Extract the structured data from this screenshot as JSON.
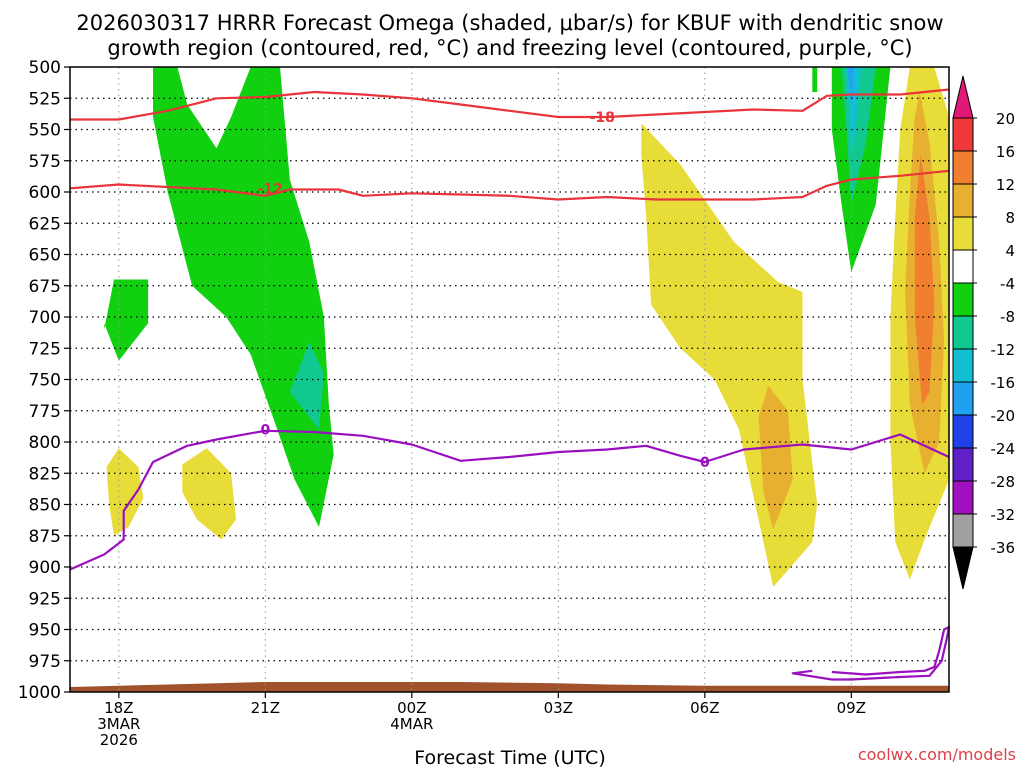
{
  "chart_data": {
    "type": "heatmap",
    "title_line1": "2026030317 HRRR Forecast Omega (shaded, μbar/s) for KBUF with dendritic snow",
    "title_line2": "growth region (contoured, red, °C) and freezing level (contoured, purple, °C)",
    "xlabel": "Forecast Time (UTC)",
    "ylabel": "",
    "credit": "coolwx.com/models",
    "x_range_hours": [
      -1.0,
      17.0
    ],
    "y_range_hpa": [
      1000,
      500
    ],
    "y_ticks": [
      500,
      525,
      550,
      575,
      600,
      625,
      650,
      675,
      700,
      725,
      750,
      775,
      800,
      825,
      850,
      875,
      900,
      925,
      950,
      975,
      1000
    ],
    "x_ticks": [
      {
        "hour": 0,
        "lines": [
          "18Z",
          "3MAR",
          "2026"
        ]
      },
      {
        "hour": 3,
        "lines": [
          "21Z"
        ]
      },
      {
        "hour": 6,
        "lines": [
          "00Z",
          "4MAR"
        ]
      },
      {
        "hour": 9,
        "lines": [
          "03Z"
        ]
      },
      {
        "hour": 12,
        "lines": [
          "06Z"
        ]
      },
      {
        "hour": 15,
        "lines": [
          "09Z"
        ]
      }
    ],
    "colorbar": {
      "labels": [
        "20",
        "16",
        "12",
        "8",
        "4",
        "-4",
        "-8",
        "-12",
        "-16",
        "-20",
        "-24",
        "-28",
        "-32",
        "-36"
      ],
      "bins": [
        {
          "from": 16,
          "to": 20,
          "color": "#f03838"
        },
        {
          "from": 12,
          "to": 16,
          "color": "#f08030"
        },
        {
          "from": 8,
          "to": 12,
          "color": "#e8b030"
        },
        {
          "from": 4,
          "to": 8,
          "color": "#e8dc38"
        },
        {
          "from": -4,
          "to": 4,
          "color": "#ffffff"
        },
        {
          "from": -8,
          "to": -4,
          "color": "#10d010"
        },
        {
          "from": -12,
          "to": -8,
          "color": "#10c890"
        },
        {
          "from": -16,
          "to": -12,
          "color": "#10c0d0"
        },
        {
          "from": -20,
          "to": -16,
          "color": "#20a0f0"
        },
        {
          "from": -24,
          "to": -20,
          "color": "#2040e8"
        },
        {
          "from": -28,
          "to": -24,
          "color": "#6020c8"
        },
        {
          "from": -32,
          "to": -28,
          "color": "#a010c0"
        },
        {
          "from": -36,
          "to": -32,
          "color": "#a0a0a0"
        }
      ],
      "over_color": "#e01878",
      "under_color": "#000000"
    },
    "omega_regions": [
      {
        "value": -6,
        "color": "#10d010",
        "points": [
          [
            0.7,
            500
          ],
          [
            1.2,
            500
          ],
          [
            1.4,
            530
          ],
          [
            2.0,
            565
          ],
          [
            2.3,
            540
          ],
          [
            2.7,
            500
          ],
          [
            3.3,
            500
          ],
          [
            3.5,
            590
          ],
          [
            3.9,
            640
          ],
          [
            4.2,
            700
          ],
          [
            4.3,
            770
          ],
          [
            4.4,
            810
          ],
          [
            4.1,
            868
          ],
          [
            3.6,
            830
          ],
          [
            3.2,
            785
          ],
          [
            2.7,
            730
          ],
          [
            2.2,
            700
          ],
          [
            1.5,
            675
          ],
          [
            1.0,
            600
          ],
          [
            0.7,
            540
          ]
        ]
      },
      {
        "value": -6,
        "color": "#10d010",
        "points": [
          [
            -0.3,
            710
          ],
          [
            -0.1,
            670
          ],
          [
            0.6,
            670
          ],
          [
            0.6,
            705
          ],
          [
            0.0,
            735
          ],
          [
            -0.3,
            705
          ]
        ]
      },
      {
        "value": -10,
        "color": "#10c890",
        "points": [
          [
            3.5,
            760
          ],
          [
            3.9,
            720
          ],
          [
            4.2,
            745
          ],
          [
            4.1,
            790
          ],
          [
            3.7,
            770
          ]
        ]
      },
      {
        "value": 6,
        "color": "#e8dc38",
        "points": [
          [
            -0.25,
            820
          ],
          [
            0.0,
            805
          ],
          [
            0.4,
            820
          ],
          [
            0.5,
            845
          ],
          [
            0.2,
            868
          ],
          [
            -0.1,
            875
          ],
          [
            -0.2,
            850
          ]
        ]
      },
      {
        "value": 6,
        "color": "#e8dc38",
        "points": [
          [
            1.3,
            818
          ],
          [
            1.8,
            805
          ],
          [
            2.3,
            825
          ],
          [
            2.4,
            862
          ],
          [
            2.1,
            878
          ],
          [
            1.6,
            862
          ],
          [
            1.3,
            840
          ]
        ]
      },
      {
        "value": 6,
        "color": "#e8dc38",
        "points": [
          [
            10.7,
            545
          ],
          [
            11.5,
            578
          ],
          [
            12.1,
            612
          ],
          [
            12.6,
            640
          ],
          [
            13.5,
            672
          ],
          [
            14.0,
            680
          ],
          [
            14.0,
            750
          ],
          [
            14.3,
            850
          ],
          [
            14.2,
            880
          ],
          [
            13.4,
            916
          ],
          [
            13.1,
            862
          ],
          [
            12.7,
            790
          ],
          [
            12.2,
            750
          ],
          [
            11.5,
            725
          ],
          [
            10.9,
            690
          ],
          [
            10.8,
            620
          ],
          [
            10.7,
            570
          ]
        ]
      },
      {
        "value": 10,
        "color": "#e8b030",
        "points": [
          [
            13.3,
            755
          ],
          [
            13.7,
            775
          ],
          [
            13.8,
            830
          ],
          [
            13.4,
            870
          ],
          [
            13.2,
            840
          ],
          [
            13.1,
            780
          ]
        ]
      },
      {
        "value": 6,
        "color": "#e8dc38",
        "points": [
          [
            16.2,
            500
          ],
          [
            16.7,
            500
          ],
          [
            17.0,
            540
          ],
          [
            17.0,
            830
          ],
          [
            16.5,
            878
          ],
          [
            16.2,
            910
          ],
          [
            15.9,
            880
          ],
          [
            15.8,
            800
          ],
          [
            15.8,
            700
          ],
          [
            15.9,
            620
          ],
          [
            16.0,
            550
          ]
        ]
      },
      {
        "value": 10,
        "color": "#e8b030",
        "points": [
          [
            16.4,
            520
          ],
          [
            16.6,
            560
          ],
          [
            16.8,
            640
          ],
          [
            16.9,
            720
          ],
          [
            16.8,
            800
          ],
          [
            16.5,
            825
          ],
          [
            16.2,
            770
          ],
          [
            16.1,
            680
          ],
          [
            16.2,
            600
          ],
          [
            16.3,
            540
          ]
        ]
      },
      {
        "value": 14,
        "color": "#f08030",
        "points": [
          [
            16.42,
            570
          ],
          [
            16.6,
            620
          ],
          [
            16.7,
            690
          ],
          [
            16.6,
            760
          ],
          [
            16.45,
            770
          ],
          [
            16.3,
            700
          ],
          [
            16.3,
            620
          ]
        ]
      },
      {
        "value": -6,
        "color": "#10d010",
        "points": [
          [
            14.2,
            500
          ],
          [
            14.3,
            500
          ],
          [
            14.3,
            520
          ],
          [
            14.2,
            520
          ]
        ]
      },
      {
        "value": -6,
        "color": "#10d010",
        "points": [
          [
            15.2,
            500
          ],
          [
            15.8,
            500
          ],
          [
            15.5,
            610
          ],
          [
            15.0,
            664
          ],
          [
            14.8,
            610
          ],
          [
            14.6,
            550
          ],
          [
            14.6,
            500
          ]
        ]
      },
      {
        "value": -10,
        "color": "#10c890",
        "points": [
          [
            14.8,
            500
          ],
          [
            15.5,
            500
          ],
          [
            15.3,
            560
          ],
          [
            15.0,
            610
          ],
          [
            14.9,
            550
          ]
        ]
      },
      {
        "value": -14,
        "color": "#10c0d0",
        "points": [
          [
            14.9,
            500
          ],
          [
            15.2,
            500
          ],
          [
            15.1,
            545
          ],
          [
            15.0,
            570
          ],
          [
            14.95,
            530
          ]
        ]
      },
      {
        "value": -18,
        "color": "#20a0f0",
        "points": [
          [
            14.93,
            500
          ],
          [
            15.05,
            500
          ],
          [
            15.02,
            530
          ],
          [
            14.98,
            525
          ]
        ]
      }
    ],
    "dgz_contours": [
      {
        "label": "-18",
        "label_at": [
          9.9,
          540
        ],
        "points": [
          [
            -1.0,
            542
          ],
          [
            0.0,
            542
          ],
          [
            1.0,
            535
          ],
          [
            2.0,
            525
          ],
          [
            3.0,
            524
          ],
          [
            4.0,
            520
          ],
          [
            5.0,
            522
          ],
          [
            6.0,
            525
          ],
          [
            7.0,
            530
          ],
          [
            8.0,
            535
          ],
          [
            9.0,
            540
          ],
          [
            10.0,
            540
          ],
          [
            11.0,
            538
          ],
          [
            12.0,
            536
          ],
          [
            13.0,
            534
          ],
          [
            14.0,
            535
          ],
          [
            14.5,
            523
          ],
          [
            15.0,
            522
          ],
          [
            16.0,
            522
          ],
          [
            17.0,
            518
          ]
        ]
      },
      {
        "label": "-12",
        "label_at": [
          3.1,
          597
        ],
        "points": [
          [
            -1.0,
            597
          ],
          [
            0.0,
            594
          ],
          [
            1.0,
            596
          ],
          [
            2.0,
            598
          ],
          [
            3.0,
            603
          ],
          [
            3.5,
            598
          ],
          [
            4.5,
            598
          ],
          [
            5.0,
            603
          ],
          [
            6.0,
            601
          ],
          [
            7.0,
            602
          ],
          [
            8.0,
            603
          ],
          [
            9.0,
            606
          ],
          [
            10.0,
            604
          ],
          [
            11.0,
            606
          ],
          [
            12.0,
            606
          ],
          [
            13.0,
            606
          ],
          [
            14.0,
            604
          ],
          [
            14.5,
            595
          ],
          [
            15.0,
            590
          ],
          [
            16.0,
            587
          ],
          [
            17.0,
            583
          ]
        ]
      }
    ],
    "freezing_level": {
      "label": "0",
      "label_at": [
        3.0,
        790
      ],
      "label2_at": [
        12.0,
        816
      ],
      "points": [
        [
          -1.0,
          902
        ],
        [
          -0.3,
          890
        ],
        [
          0.1,
          878
        ],
        [
          0.1,
          855
        ],
        [
          0.4,
          838
        ],
        [
          0.7,
          816
        ],
        [
          1.4,
          803
        ],
        [
          2.0,
          798
        ],
        [
          2.7,
          793
        ],
        [
          3.0,
          791
        ],
        [
          4.0,
          792
        ],
        [
          5.0,
          795
        ],
        [
          6.0,
          802
        ],
        [
          7.0,
          815
        ],
        [
          8.0,
          812
        ],
        [
          9.0,
          808
        ],
        [
          10.0,
          806
        ],
        [
          10.8,
          803
        ],
        [
          11.5,
          811
        ],
        [
          12.0,
          816
        ],
        [
          12.8,
          806
        ],
        [
          14.0,
          802
        ],
        [
          15.0,
          806
        ],
        [
          16.0,
          794
        ],
        [
          17.0,
          812
        ]
      ]
    },
    "freezing_level_low": {
      "points": [
        [
          14.6,
          984
        ],
        [
          15.3,
          986
        ],
        [
          16.0,
          984
        ],
        [
          16.5,
          983
        ],
        [
          16.7,
          980
        ],
        [
          16.8,
          967
        ],
        [
          16.9,
          950
        ],
        [
          17.0,
          948
        ],
        [
          16.95,
          958
        ],
        [
          16.85,
          975
        ],
        [
          16.6,
          987
        ],
        [
          16.0,
          988
        ],
        [
          15.0,
          990
        ],
        [
          14.6,
          990
        ],
        [
          13.8,
          985
        ],
        [
          14.2,
          983
        ]
      ]
    },
    "terrain_top_hpa": [
      [
        -1.0,
        996
      ],
      [
        0.0,
        995
      ],
      [
        1.0,
        994
      ],
      [
        2.0,
        993
      ],
      [
        3.0,
        992
      ],
      [
        5.0,
        992
      ],
      [
        7.0,
        992
      ],
      [
        9.0,
        993
      ],
      [
        10.0,
        994
      ],
      [
        12.0,
        995
      ],
      [
        14.0,
        995
      ],
      [
        16.0,
        995
      ],
      [
        17.0,
        995
      ]
    ]
  }
}
